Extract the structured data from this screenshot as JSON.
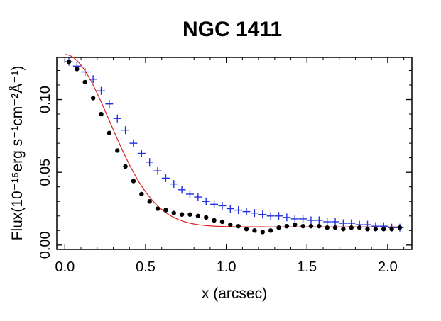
{
  "chart_data": {
    "type": "scatter",
    "title": "NGC 1411",
    "xlabel": "x (arcsec)",
    "ylabel": "Flux(10⁻¹⁵erg s⁻¹cm⁻²Å⁻¹)",
    "xlim": [
      -0.05,
      2.15
    ],
    "ylim": [
      -0.003,
      0.129
    ],
    "xticks": [
      0.0,
      0.5,
      1.0,
      1.5,
      2.0
    ],
    "xtick_labels": [
      "0.0",
      "0.5",
      "1.0",
      "1.5",
      "2.0"
    ],
    "yticks": [
      0.0,
      0.05,
      0.1
    ],
    "ytick_labels": [
      "0.00",
      "0.05",
      "0.10"
    ],
    "grid": false,
    "series": [
      {
        "name": "dots",
        "marker": "circle",
        "color": "#000000",
        "x": [
          0.025,
          0.075,
          0.125,
          0.175,
          0.225,
          0.275,
          0.325,
          0.375,
          0.425,
          0.475,
          0.525,
          0.575,
          0.625,
          0.675,
          0.725,
          0.775,
          0.825,
          0.875,
          0.925,
          0.975,
          1.025,
          1.075,
          1.125,
          1.175,
          1.225,
          1.275,
          1.325,
          1.375,
          1.425,
          1.475,
          1.525,
          1.575,
          1.625,
          1.675,
          1.725,
          1.775,
          1.825,
          1.875,
          1.925,
          1.975,
          2.025,
          2.075
        ],
        "y": [
          0.126,
          0.121,
          0.112,
          0.101,
          0.09,
          0.077,
          0.065,
          0.054,
          0.044,
          0.035,
          0.03,
          0.025,
          0.024,
          0.022,
          0.021,
          0.021,
          0.02,
          0.019,
          0.017,
          0.016,
          0.014,
          0.013,
          0.011,
          0.01,
          0.009,
          0.01,
          0.012,
          0.013,
          0.014,
          0.013,
          0.013,
          0.013,
          0.012,
          0.012,
          0.011,
          0.012,
          0.012,
          0.011,
          0.011,
          0.011,
          0.011,
          0.012
        ]
      },
      {
        "name": "crosses",
        "marker": "plus",
        "color": "#2030e0",
        "x": [
          0.025,
          0.075,
          0.125,
          0.175,
          0.225,
          0.275,
          0.325,
          0.375,
          0.425,
          0.475,
          0.525,
          0.575,
          0.625,
          0.675,
          0.725,
          0.775,
          0.825,
          0.875,
          0.925,
          0.975,
          1.025,
          1.075,
          1.125,
          1.175,
          1.225,
          1.275,
          1.325,
          1.375,
          1.425,
          1.475,
          1.525,
          1.575,
          1.625,
          1.675,
          1.725,
          1.775,
          1.825,
          1.875,
          1.925,
          1.975,
          2.025,
          2.075
        ],
        "y": [
          0.126,
          0.123,
          0.119,
          0.114,
          0.106,
          0.097,
          0.087,
          0.079,
          0.07,
          0.063,
          0.057,
          0.051,
          0.046,
          0.042,
          0.038,
          0.035,
          0.033,
          0.03,
          0.028,
          0.027,
          0.025,
          0.024,
          0.023,
          0.022,
          0.021,
          0.02,
          0.02,
          0.019,
          0.018,
          0.018,
          0.017,
          0.017,
          0.016,
          0.016,
          0.015,
          0.015,
          0.014,
          0.014,
          0.013,
          0.013,
          0.012,
          0.012
        ]
      },
      {
        "name": "fit",
        "marker": "line",
        "color": "#e02020",
        "function": "gaussian",
        "params": {
          "amplitude": 0.1185,
          "center": 0.0,
          "sigma": 0.28,
          "baseline": 0.0125
        },
        "x_range": [
          0.0,
          2.075
        ]
      }
    ]
  }
}
